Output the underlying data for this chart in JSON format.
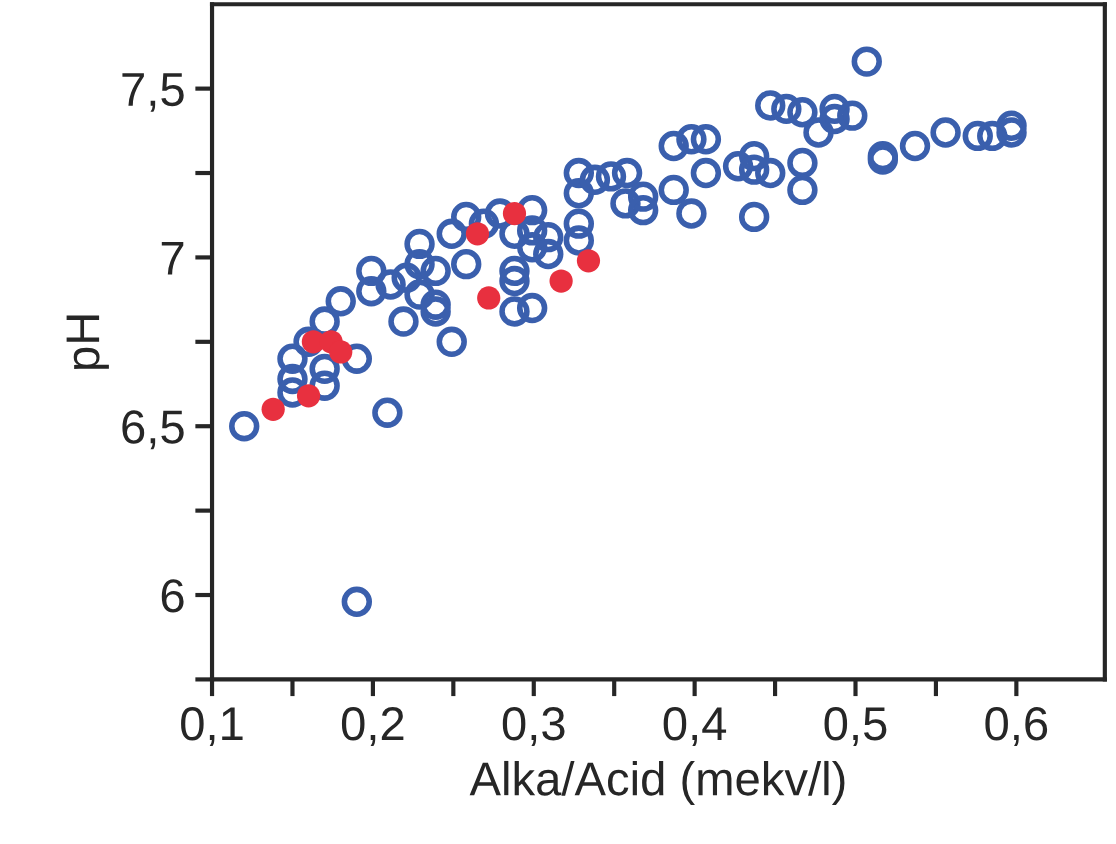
{
  "chart_data": {
    "type": "scatter",
    "xlabel": "Alka/Acid (mekv/l)",
    "ylabel": "pH",
    "marker": "circle",
    "grid": false,
    "legend": false,
    "xlim": [
      0.1,
      0.655
    ],
    "ylim": [
      5.75,
      7.75
    ],
    "xticks": [
      {
        "value": 0.1,
        "label": "0,1"
      },
      {
        "value": 0.15,
        "label": null
      },
      {
        "value": 0.2,
        "label": "0,2"
      },
      {
        "value": 0.25,
        "label": null
      },
      {
        "value": 0.3,
        "label": "0,3"
      },
      {
        "value": 0.35,
        "label": null
      },
      {
        "value": 0.4,
        "label": "0,4"
      },
      {
        "value": 0.45,
        "label": null
      },
      {
        "value": 0.5,
        "label": "0,5"
      },
      {
        "value": 0.55,
        "label": null
      },
      {
        "value": 0.6,
        "label": "0,6"
      }
    ],
    "yticks": [
      {
        "value": 5.75,
        "label": null
      },
      {
        "value": 6,
        "label": "6"
      },
      {
        "value": 6.25,
        "label": null
      },
      {
        "value": 6.5,
        "label": "6,5"
      },
      {
        "value": 6.75,
        "label": null
      },
      {
        "value": 7,
        "label": "7"
      },
      {
        "value": 7.25,
        "label": null
      },
      {
        "value": 7.5,
        "label": "7,5"
      }
    ],
    "series": [
      {
        "color": "#3a5fad",
        "x": [
          0.12,
          0.19,
          0.209,
          0.15,
          0.15,
          0.15,
          0.16,
          0.17,
          0.17,
          0.17,
          0.18,
          0.19,
          0.199,
          0.199,
          0.211,
          0.219,
          0.221,
          0.229,
          0.229,
          0.229,
          0.239,
          0.239,
          0.239,
          0.249,
          0.249,
          0.258,
          0.258,
          0.269,
          0.279,
          0.288,
          0.288,
          0.288,
          0.288,
          0.299,
          0.299,
          0.299,
          0.299,
          0.309,
          0.309,
          0.328,
          0.328,
          0.328,
          0.328,
          0.338,
          0.348,
          0.358,
          0.357,
          0.368,
          0.368,
          0.387,
          0.387,
          0.398,
          0.407,
          0.407,
          0.398,
          0.427,
          0.437,
          0.437,
          0.447,
          0.437,
          0.467,
          0.467,
          0.447,
          0.457,
          0.467,
          0.477,
          0.487,
          0.487,
          0.498,
          0.507,
          0.517,
          0.517,
          0.537,
          0.556,
          0.576,
          0.585,
          0.597,
          0.597
        ],
        "values": [
          6.5,
          5.98,
          6.54,
          6.7,
          6.64,
          6.6,
          6.75,
          6.81,
          6.67,
          6.62,
          6.87,
          6.7,
          6.96,
          6.9,
          6.92,
          6.81,
          6.94,
          7.04,
          6.98,
          6.89,
          6.96,
          6.86,
          6.84,
          6.75,
          7.07,
          6.98,
          7.12,
          7.1,
          7.13,
          7.07,
          6.96,
          6.93,
          6.84,
          7.14,
          7.08,
          7.03,
          6.85,
          7.06,
          7.01,
          7.25,
          7.19,
          7.1,
          7.05,
          7.23,
          7.24,
          7.25,
          7.16,
          7.18,
          7.14,
          7.2,
          7.33,
          7.35,
          7.35,
          7.25,
          7.13,
          7.27,
          7.3,
          7.26,
          7.25,
          7.12,
          7.28,
          7.2,
          7.45,
          7.44,
          7.43,
          7.37,
          7.44,
          7.41,
          7.42,
          7.58,
          7.3,
          7.29,
          7.33,
          7.37,
          7.36,
          7.36,
          7.39,
          7.37
        ]
      },
      {
        "color": "#e8303f",
        "x": [
          0.138,
          0.16,
          0.163,
          0.174,
          0.18,
          0.265,
          0.288,
          0.272,
          0.317,
          0.334
        ],
        "values": [
          6.55,
          6.59,
          6.75,
          6.75,
          6.72,
          7.07,
          7.13,
          6.88,
          6.93,
          6.99
        ]
      }
    ]
  }
}
